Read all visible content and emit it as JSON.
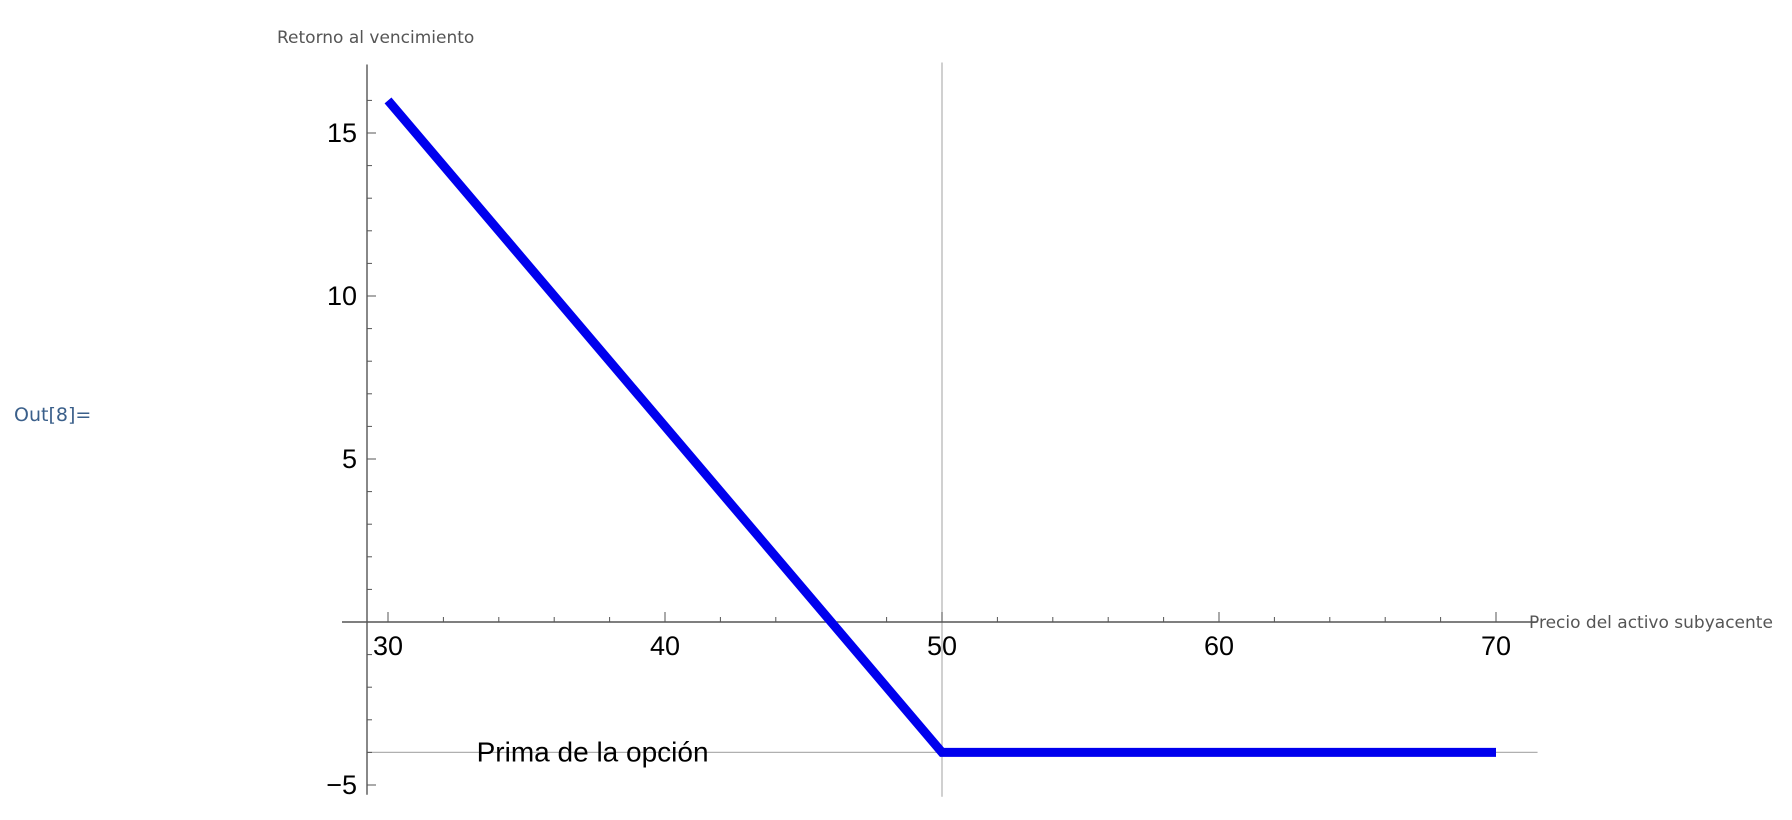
{
  "cell": {
    "out_label": "Out[8]="
  },
  "colors": {
    "series": "#0000ee",
    "axis": "#555555",
    "gridline": "#b0b0b0"
  },
  "chart_data": {
    "type": "line",
    "xlabel": "Precio del activo subyacente",
    "ylabel": "Retorno al vencimiento",
    "xlim": [
      28.2,
      71.5
    ],
    "ylim": [
      -5.3,
      17.1
    ],
    "x_ticks": [
      30,
      40,
      50,
      60,
      70
    ],
    "x_tick_labels": [
      "30",
      "40",
      "50",
      "60",
      "70"
    ],
    "y_ticks": [
      -5,
      5,
      10,
      15
    ],
    "y_tick_labels": [
      "−5",
      "5",
      "10",
      "15"
    ],
    "series": [
      {
        "x": [
          30,
          50,
          70
        ],
        "y": [
          16,
          -4,
          -4
        ]
      }
    ],
    "reference_lines": {
      "vertical_x": 50,
      "horizontal_y": -4
    },
    "annotations": [
      {
        "text": "Prima de la opción",
        "x": 33.2,
        "y": -4
      }
    ],
    "grid": false
  }
}
